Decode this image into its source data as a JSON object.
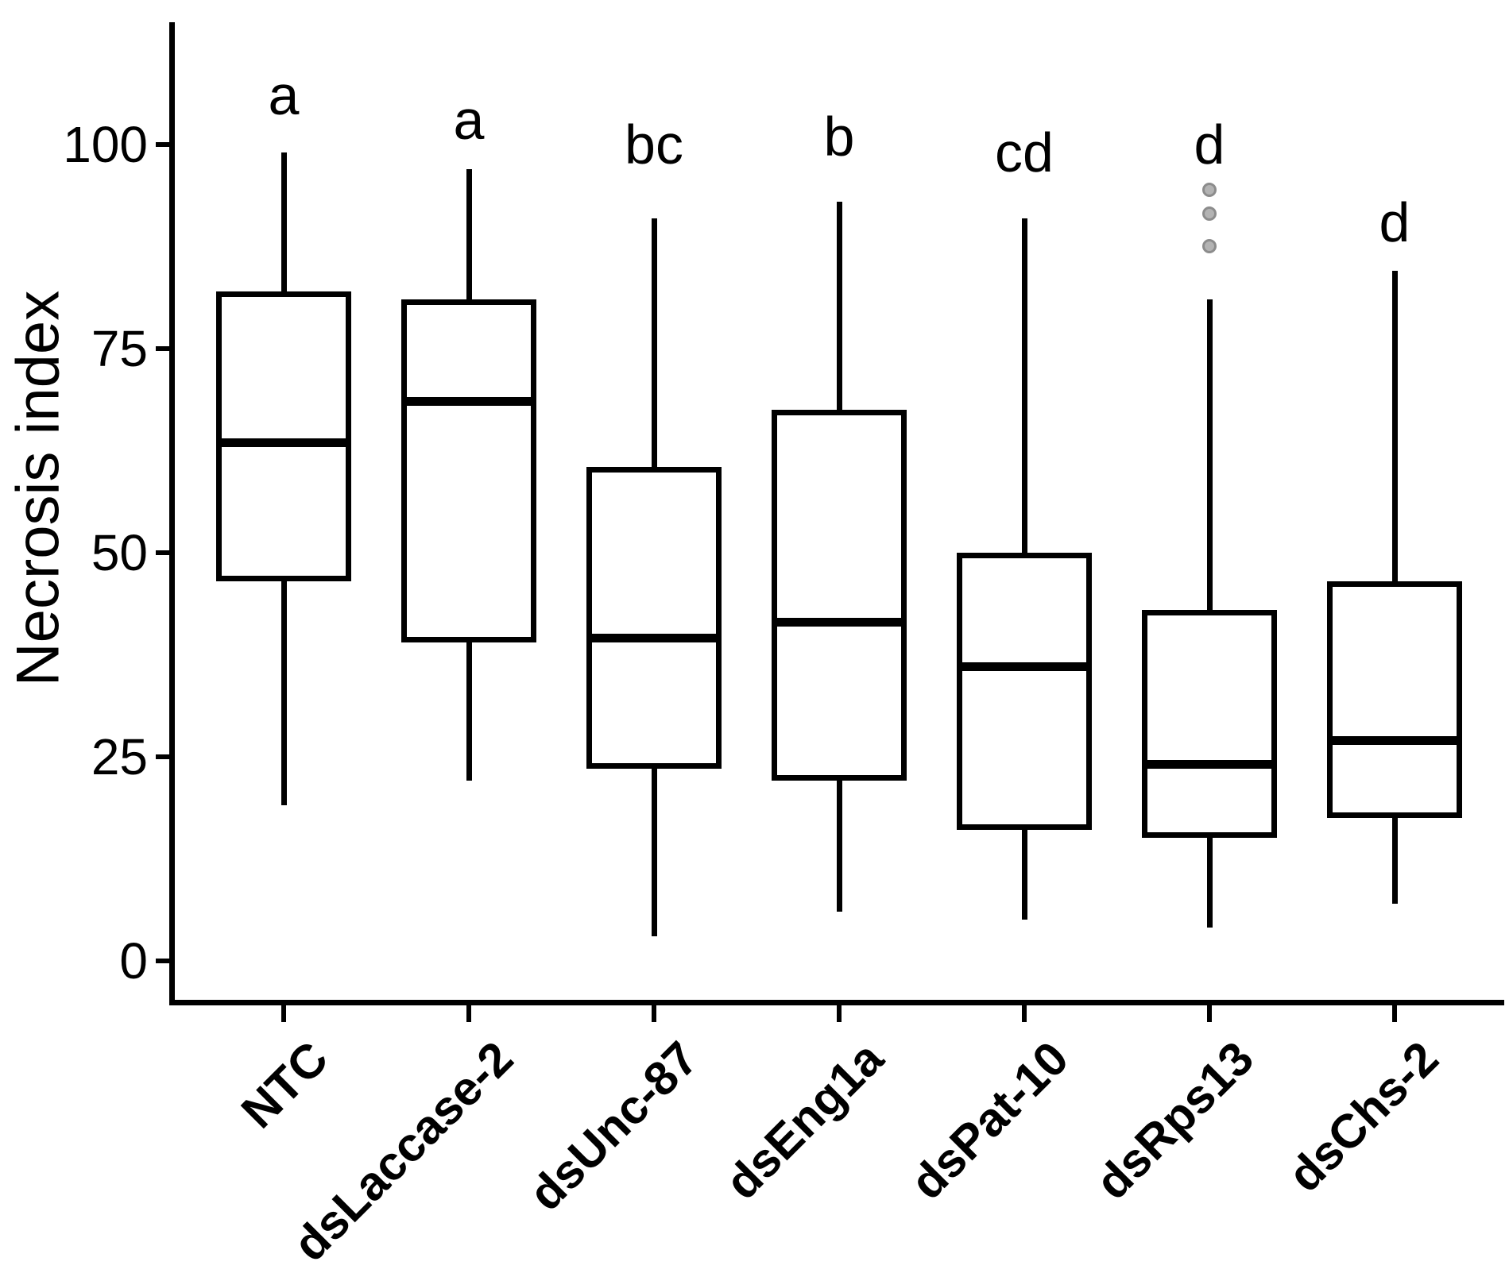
{
  "chart_data": {
    "type": "boxplot",
    "title": "",
    "xlabel": "",
    "ylabel": "Necrosis index",
    "ylim": [
      0,
      100
    ],
    "yticks": [
      0,
      25,
      50,
      75,
      100
    ],
    "grid": false,
    "legend": "none",
    "categories": [
      "NTC",
      "dsLaccase-2",
      "dsUnc-87",
      "dsEng1a",
      "dsPat-10",
      "dsRps13",
      "dsChs-2"
    ],
    "significance_letters": [
      "a",
      "a",
      "bc",
      "b",
      "cd",
      "d",
      "d"
    ],
    "boxes": [
      {
        "category": "NTC",
        "letter": "a",
        "letter_y": 106,
        "whisker_low": 19,
        "q1": 46.5,
        "median": 63.5,
        "q3": 82,
        "whisker_high": 99,
        "outliers": []
      },
      {
        "category": "dsLaccase-2",
        "letter": "a",
        "letter_y": 103,
        "whisker_low": 22,
        "q1": 39,
        "median": 68.5,
        "q3": 81,
        "whisker_high": 97,
        "outliers": []
      },
      {
        "category": "dsUnc-87",
        "letter": "bc",
        "letter_y": 100,
        "whisker_low": 3,
        "q1": 23.5,
        "median": 39.5,
        "q3": 60.5,
        "whisker_high": 91,
        "outliers": []
      },
      {
        "category": "dsEng1a",
        "letter": "b",
        "letter_y": 101,
        "whisker_low": 6,
        "q1": 22,
        "median": 41.5,
        "q3": 67.5,
        "whisker_high": 93,
        "outliers": []
      },
      {
        "category": "dsPat-10",
        "letter": "cd",
        "letter_y": 99,
        "whisker_low": 5,
        "q1": 16,
        "median": 36,
        "q3": 50,
        "whisker_high": 91,
        "outliers": []
      },
      {
        "category": "dsRps13",
        "letter": "d",
        "letter_y": 100,
        "whisker_low": 4,
        "q1": 15,
        "median": 24,
        "q3": 43,
        "whisker_high": 81,
        "outliers": [
          94.5,
          91.5,
          87.5
        ]
      },
      {
        "category": "dsChs-2",
        "letter": "d",
        "letter_y": 90.5,
        "whisker_low": 7,
        "q1": 17.5,
        "median": 27,
        "q3": 46.5,
        "whisker_high": 84.5,
        "outliers": []
      }
    ],
    "colors": {
      "box_stroke": "#000000",
      "median_stroke": "#000000",
      "outlier_fill": "#b3b3b3",
      "outlier_stroke": "#8c8c8c",
      "background": "#ffffff"
    }
  }
}
